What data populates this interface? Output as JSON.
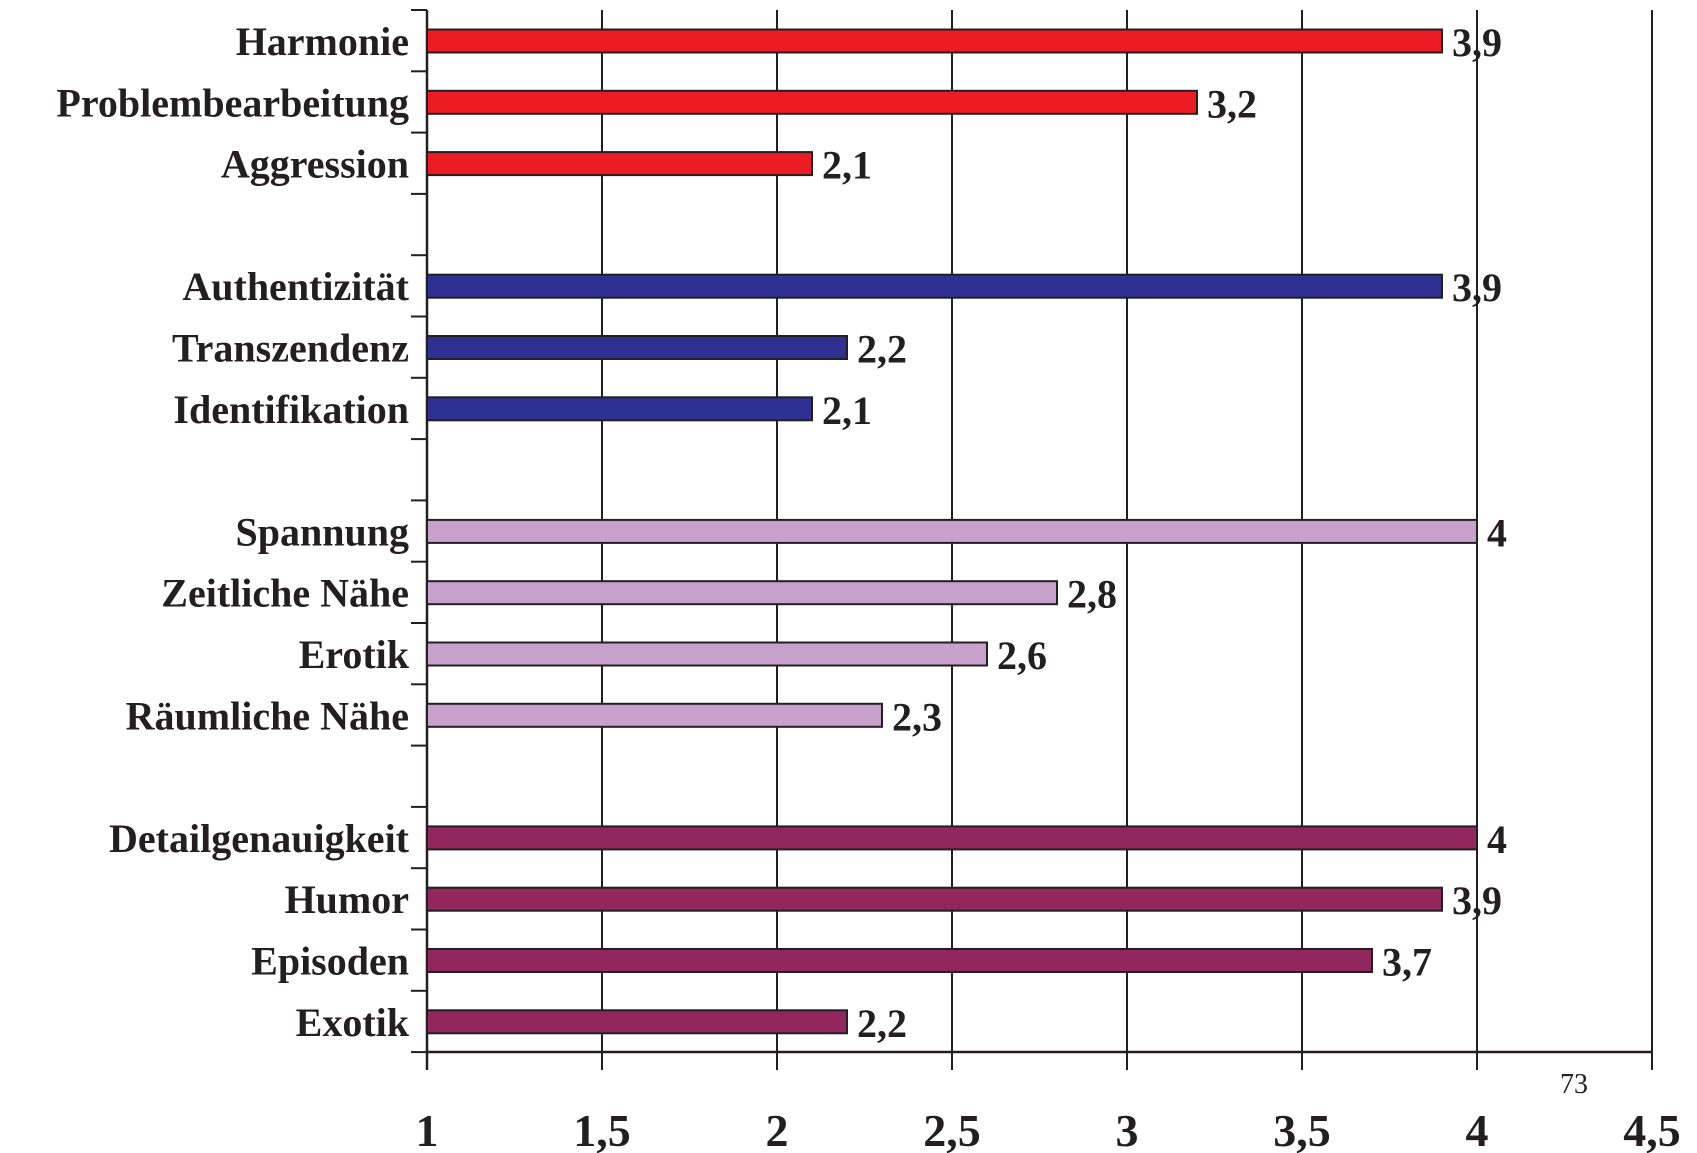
{
  "chart_data": {
    "type": "bar",
    "orientation": "horizontal",
    "title": "",
    "xlabel": "",
    "ylabel": "",
    "xlim": [
      1,
      4.5
    ],
    "x_ticks": [
      "1",
      "1,5",
      "2",
      "2,5",
      "3",
      "3,5",
      "4",
      "4,5"
    ],
    "x_tick_values": [
      1,
      1.5,
      2,
      2.5,
      3,
      3.5,
      4,
      4.5
    ],
    "grid": "vertical",
    "legend": "none",
    "groups": [
      {
        "color": "#ed1c24",
        "bars": [
          {
            "label": "Harmonie",
            "value": 3.9,
            "value_label": "3,9"
          },
          {
            "label": "Problembearbeitung",
            "value": 3.2,
            "value_label": "3,2"
          },
          {
            "label": "Aggression",
            "value": 2.1,
            "value_label": "2,1"
          }
        ]
      },
      {
        "color": "#2e3192",
        "bars": [
          {
            "label": "Authentizität",
            "value": 3.9,
            "value_label": "3,9"
          },
          {
            "label": "Transzendenz",
            "value": 2.2,
            "value_label": "2,2"
          },
          {
            "label": "Identifikation",
            "value": 2.1,
            "value_label": "2,1"
          }
        ]
      },
      {
        "color": "#c8a0cc",
        "bars": [
          {
            "label": "Spannung",
            "value": 4,
            "value_label": "4"
          },
          {
            "label": "Zeitliche Nähe",
            "value": 2.8,
            "value_label": "2,8"
          },
          {
            "label": "Erotik",
            "value": 2.6,
            "value_label": "2,6"
          },
          {
            "label": "Räumliche Nähe",
            "value": 2.3,
            "value_label": "2,3"
          }
        ]
      },
      {
        "color": "#92275e",
        "bars": [
          {
            "label": "Detailgenauigkeit",
            "value": 4,
            "value_label": "4"
          },
          {
            "label": "Humor",
            "value": 3.9,
            "value_label": "3,9"
          },
          {
            "label": "Episoden",
            "value": 3.7,
            "value_label": "3,7"
          },
          {
            "label": "Exotik",
            "value": 2.2,
            "value_label": "2,2"
          }
        ]
      }
    ]
  },
  "page_number": "73"
}
